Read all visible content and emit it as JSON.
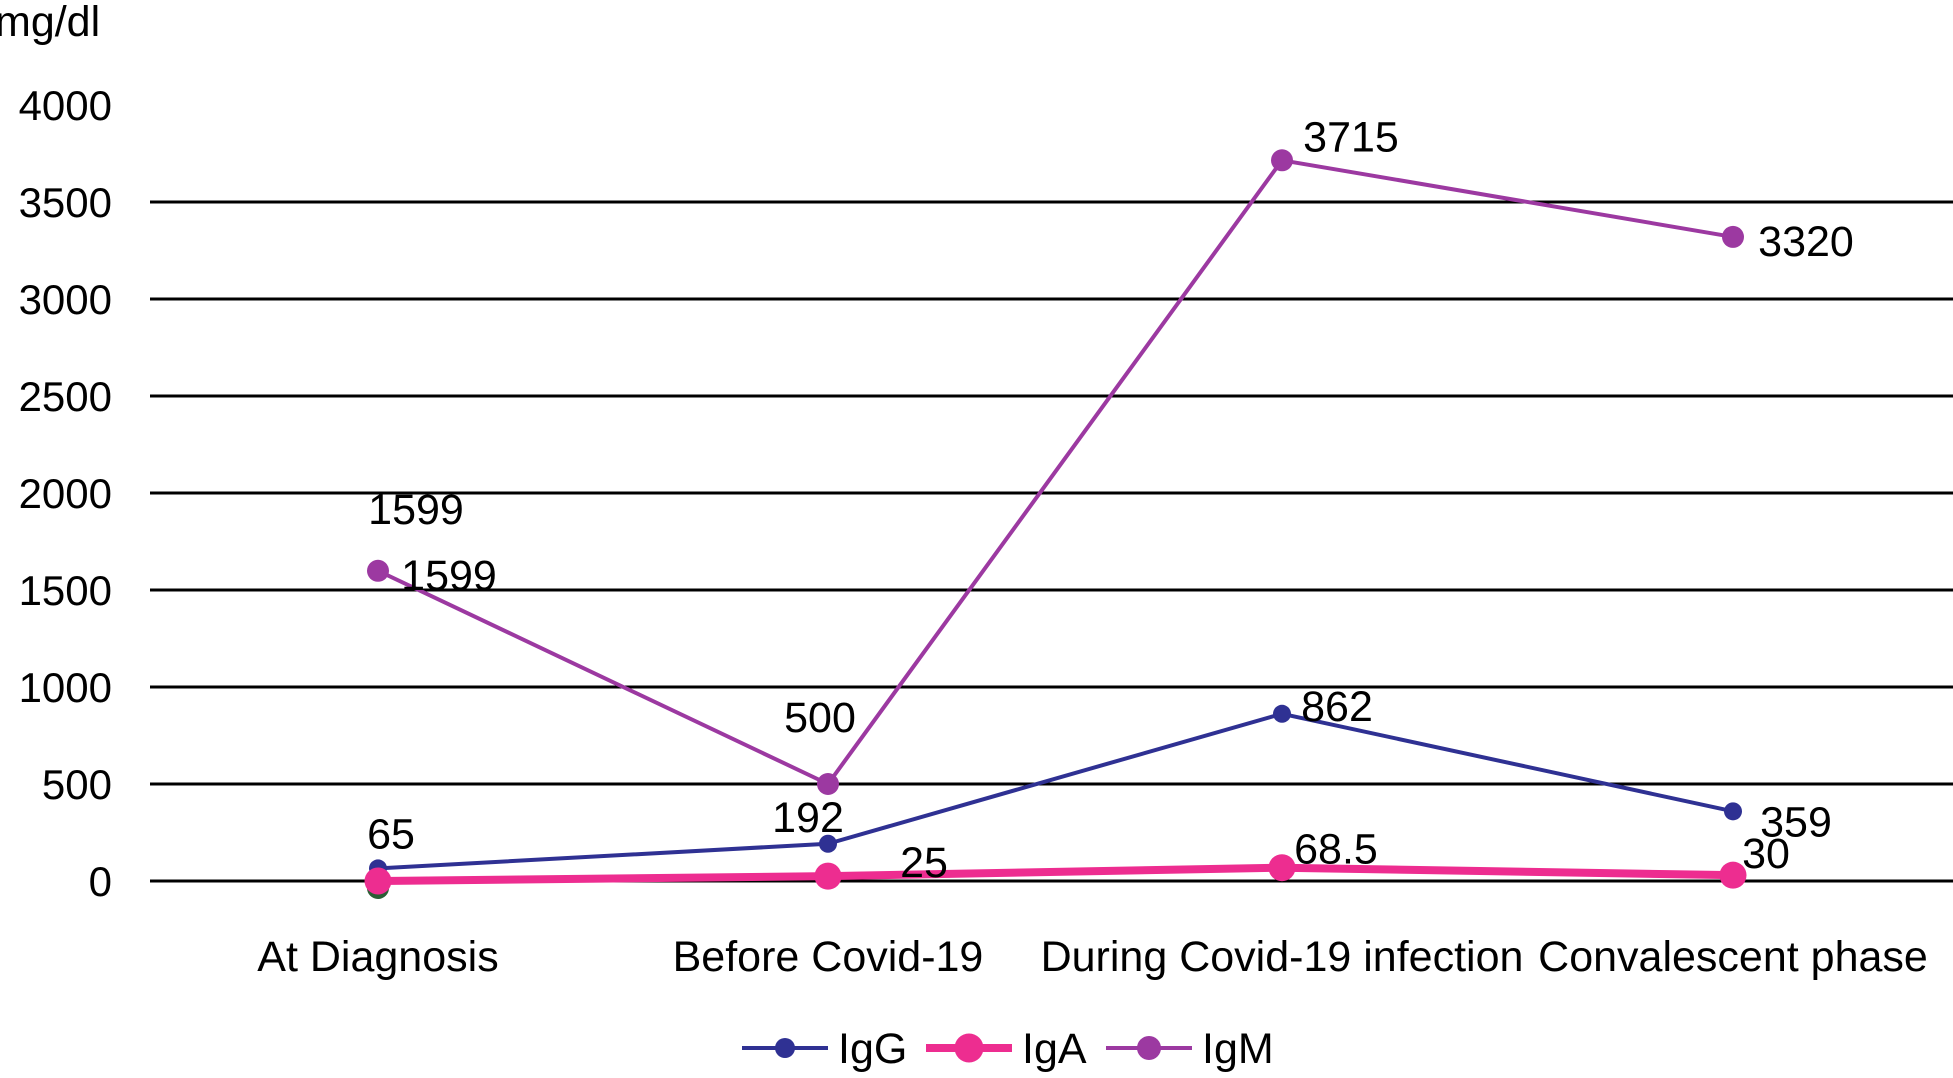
{
  "unit_label": "mg/dl",
  "chart_data": {
    "type": "line",
    "title": "",
    "xlabel": "",
    "ylabel": "mg/dl",
    "ylim": [
      0,
      4000
    ],
    "ytick_step": 500,
    "yticks": [
      4000,
      3500,
      3000,
      2500,
      2000,
      1500,
      1000,
      500,
      0
    ],
    "gridline_max": 3500,
    "grid": "horizontal-only",
    "legend_position": "bottom-center",
    "categories": [
      "At Diagnosis",
      "Before Covid-19",
      "During Covid-19 infection",
      "Convalescent phase"
    ],
    "series": [
      {
        "name": "IgG",
        "color": "#2F3193",
        "values": [
          65,
          192,
          862,
          359
        ],
        "labels": [
          "65",
          "192",
          "862",
          "359"
        ],
        "label_offsets": [
          [
            13,
            -35
          ],
          [
            -20,
            -27
          ],
          [
            55,
            -8
          ],
          [
            63,
            10
          ]
        ]
      },
      {
        "name": "IgA",
        "color": "#ED2D90",
        "values": [
          0,
          25,
          68.5,
          30
        ],
        "labels": [
          "",
          "25",
          "68.5",
          "30"
        ],
        "label_offsets": [
          [
            0,
            0
          ],
          [
            96,
            -14
          ],
          [
            54,
            -19
          ],
          [
            33,
            -22
          ]
        ]
      },
      {
        "name": "IgM",
        "color": "#9C39A1",
        "values": [
          1599,
          500,
          3715,
          3320
        ],
        "labels": [
          "1599",
          "500",
          "3715",
          "3320"
        ],
        "label_offsets": [
          [
            71,
            4
          ],
          [
            -8,
            -67
          ],
          [
            69,
            -24
          ],
          [
            73,
            4
          ]
        ]
      }
    ],
    "extra_labels": [
      {
        "text": "1599",
        "x": 416,
        "y": 509
      }
    ],
    "hidden_point": {
      "category_index": 0,
      "value": 0,
      "color": "#2A5E35"
    },
    "axis_color": "#000000",
    "label_color": "#000000"
  }
}
